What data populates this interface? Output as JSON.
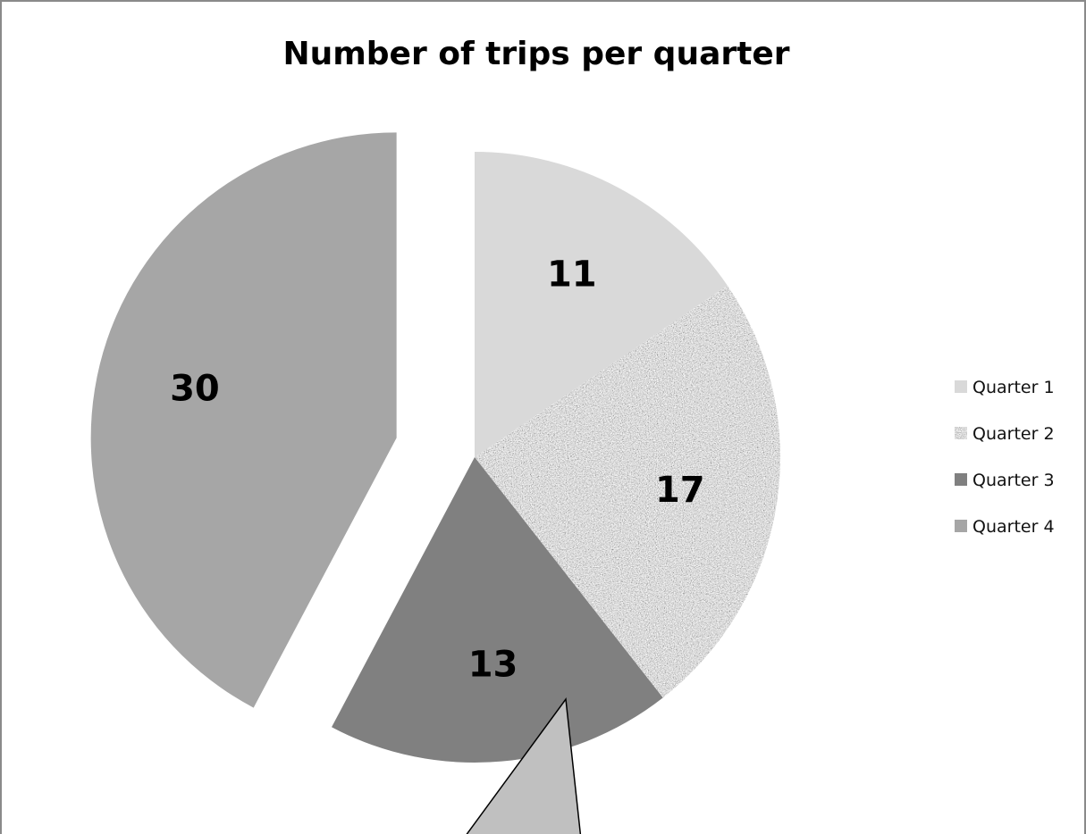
{
  "chart_data": {
    "type": "pie",
    "title": "Number of trips per quarter",
    "categories": [
      "Quarter 1",
      "Quarter 2",
      "Quarter 3",
      "Quarter 4"
    ],
    "values": [
      11,
      17,
      13,
      30
    ],
    "data_labels": [
      "11",
      "17",
      "13",
      "30"
    ],
    "colors": [
      "#d9d9d9",
      "#b4b4b4",
      "#808080",
      "#a6a6a6"
    ],
    "fills": [
      "solid",
      "speckled",
      "solid",
      "solid"
    ],
    "exploded_slice": "Quarter 4",
    "legend_position": "right",
    "callout_color": "#c0c0c0"
  }
}
